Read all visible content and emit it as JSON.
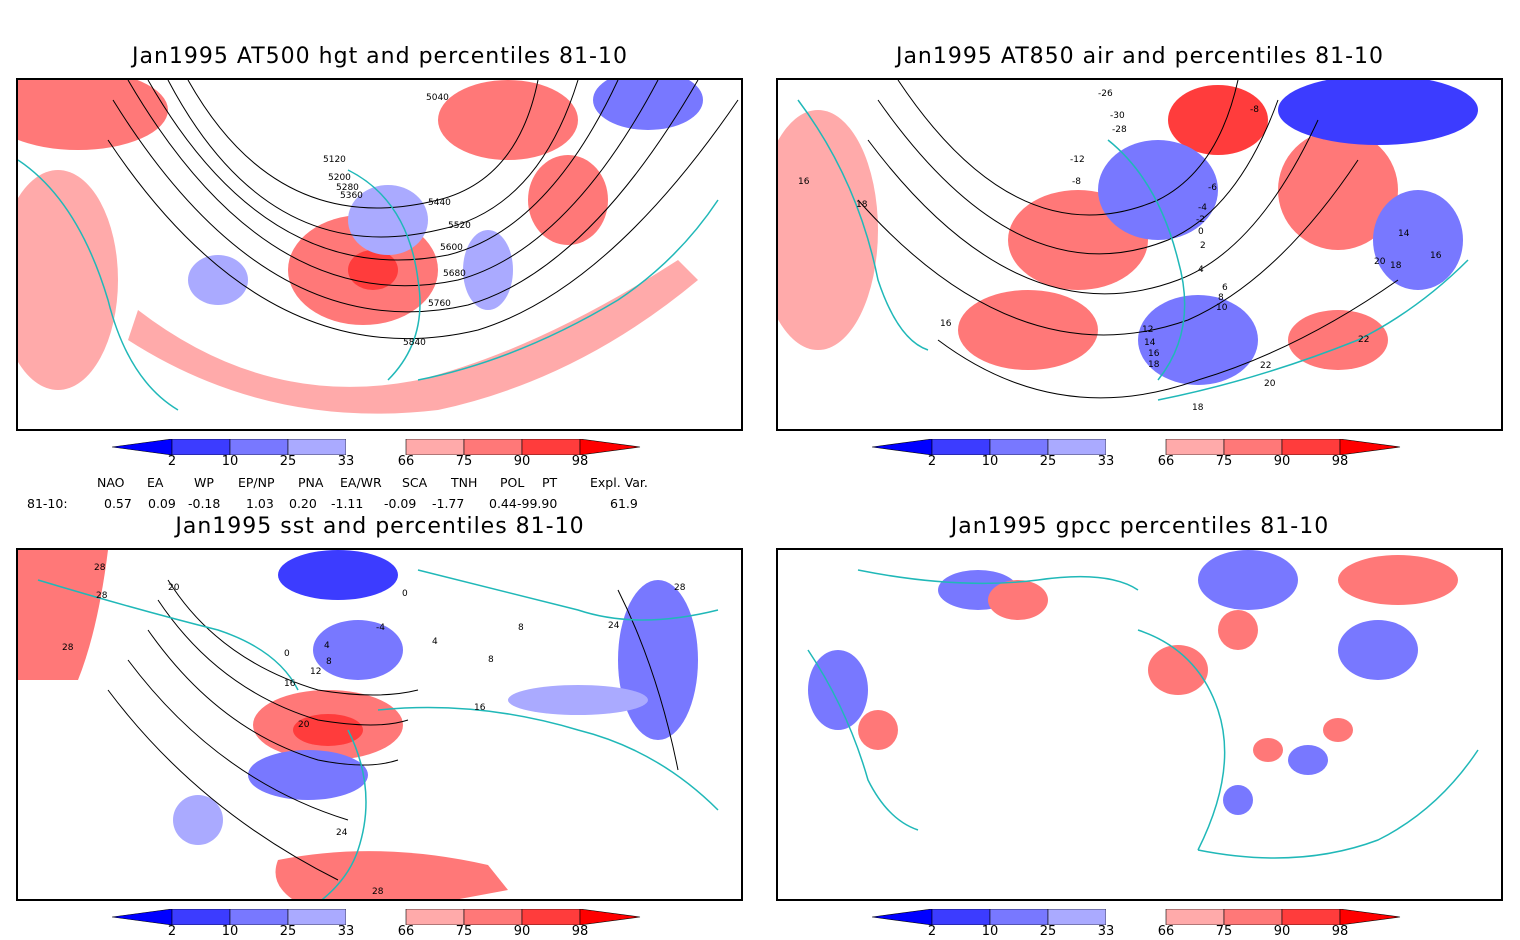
{
  "panels": [
    {
      "id": "p1",
      "title": "Jan1995 AT500 hgt and percentiles 81-10",
      "contour_labels": [
        "5040",
        "5120",
        "5200",
        "5280",
        "5360",
        "5440",
        "5520",
        "5600",
        "5680",
        "5760",
        "5840"
      ]
    },
    {
      "id": "p2",
      "title": "Jan1995 AT850 air and percentiles 81-10",
      "contour_labels": [
        "-26",
        "-30",
        "-28",
        "-8",
        "-12",
        "-8",
        "-6",
        "-4",
        "-2",
        "0",
        "2",
        "4",
        "6",
        "8",
        "10",
        "12",
        "14",
        "16",
        "18",
        "14",
        "16",
        "18",
        "20",
        "22",
        "22",
        "20",
        "18",
        "16",
        "18",
        "16"
      ]
    },
    {
      "id": "p3",
      "title": "Jan1995 sst and percentiles 81-10",
      "contour_labels": [
        "28",
        "28",
        "20",
        "28",
        "0",
        "4",
        "8",
        "12",
        "16",
        "20",
        "24",
        "28",
        "0",
        "-4",
        "4",
        "8",
        "8",
        "16",
        "24",
        "28"
      ]
    },
    {
      "id": "p4",
      "title": "Jan1995 gpcc percentiles 81-10",
      "contour_labels": []
    }
  ],
  "legend": {
    "labels": [
      "2",
      "10",
      "25",
      "33",
      "66",
      "75",
      "90",
      "98"
    ],
    "colors": [
      "#0000ff",
      "#3c3cff",
      "#7878ff",
      "#aaaaff",
      "#ffffff",
      "#ffaaaa",
      "#ff7878",
      "#ff3c3c",
      "#ff0000"
    ]
  },
  "teleconnections": {
    "headers": [
      "NAO",
      "EA",
      "WP",
      "EP/NP",
      "PNA",
      "EA/WR",
      "SCA",
      "TNH",
      "POL",
      "PT",
      "Expl. Var."
    ],
    "row_label": "81-10:",
    "values": [
      "0.57",
      "0.09",
      "-0.18",
      "1.03",
      "0.20",
      "-1.11",
      "-0.09",
      "-1.77",
      "0.44",
      "-99.90",
      "61.9"
    ]
  },
  "colors": {
    "coast": "#20b8b8",
    "contour": "#000000",
    "grid": "#999999"
  }
}
